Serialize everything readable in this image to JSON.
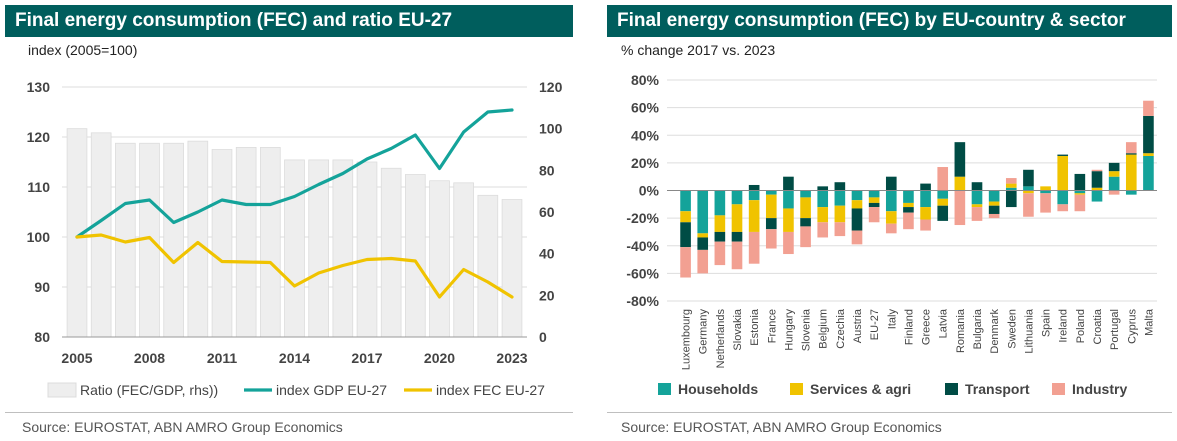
{
  "left_panel": {
    "title": "Final energy consumption (FEC) and ratio EU-27",
    "subtitle": "index (2005=100)",
    "source": "Source: EUROSTAT, ABN AMRO Group Economics"
  },
  "right_panel": {
    "title": "Final energy consumption (FEC) by EU-country & sector",
    "subtitle": "% change 2017 vs. 2023",
    "source": "Source: EUROSTAT, ABN AMRO Group Economics"
  },
  "chart_data": [
    {
      "type": "bar+line",
      "x": [
        2005,
        2006,
        2007,
        2008,
        2009,
        2010,
        2011,
        2012,
        2013,
        2014,
        2015,
        2016,
        2017,
        2018,
        2019,
        2020,
        2021,
        2022,
        2023
      ],
      "x_tick_labels": [
        "2005",
        "2008",
        "2011",
        "2014",
        "2017",
        "2020",
        "2023"
      ],
      "x_tick_values": [
        2005,
        2008,
        2011,
        2014,
        2017,
        2020,
        2023
      ],
      "y_left_ticks": [
        "80",
        "90",
        "100",
        "110",
        "120",
        "130"
      ],
      "y_left_lim": [
        80,
        130
      ],
      "y_right_ticks": [
        "0",
        "20",
        "40",
        "60",
        "80",
        "100",
        "120"
      ],
      "y_right_lim": [
        0,
        120
      ],
      "grid": true,
      "legend_position": "bottom",
      "series": [
        {
          "name": "Ratio (FEC/GDP, rhs))",
          "kind": "bar",
          "axis": "right",
          "color": "#eeeeee",
          "values": [
            100,
            98,
            93,
            93,
            93,
            94,
            90,
            91,
            91,
            85,
            85,
            85,
            84,
            81,
            78,
            75,
            74,
            68,
            66
          ]
        },
        {
          "name": "index GDP EU-27",
          "kind": "line",
          "axis": "left",
          "color": "#14a39a",
          "values": [
            100,
            103.3,
            106.7,
            107.4,
            102.9,
            105.0,
            107.4,
            106.5,
            106.5,
            108.1,
            110.5,
            112.7,
            115.6,
            117.7,
            120.4,
            113.7,
            121.0,
            125.0,
            125.4
          ]
        },
        {
          "name": "index FEC EU-27",
          "kind": "line",
          "axis": "left",
          "color": "#f0c300",
          "values": [
            100,
            100.4,
            99.0,
            99.9,
            94.9,
            98.9,
            95.1,
            95.0,
            94.9,
            90.2,
            92.8,
            94.3,
            95.5,
            95.7,
            95.2,
            88.0,
            93.5,
            91.0,
            88.0
          ]
        }
      ]
    },
    {
      "type": "bar",
      "stacked": true,
      "categories": [
        "Luxembourg",
        "Germany",
        "Netherlands",
        "Slovakia",
        "Estonia",
        "France",
        "Hungary",
        "Slovenia",
        "Belgium",
        "Czechia",
        "Austria",
        "EU-27",
        "Italy",
        "Finland",
        "Greece",
        "Latvia",
        "Romania",
        "Bulgaria",
        "Denmark",
        "Sweden",
        "Lithuania",
        "Spain",
        "Ireland",
        "Poland",
        "Croatia",
        "Portugal",
        "Cyprus",
        "Malta"
      ],
      "ylim": [
        -80,
        80
      ],
      "y_ticks": [
        "-80%",
        "-60%",
        "-40%",
        "-20%",
        "0%",
        "20%",
        "40%",
        "60%",
        "80%"
      ],
      "y_tick_values": [
        -80,
        -60,
        -40,
        -20,
        0,
        20,
        40,
        60,
        80
      ],
      "grid": true,
      "legend_position": "bottom",
      "series": [
        {
          "name": "Households",
          "color": "#14a39a",
          "values": [
            -15,
            -31,
            -18,
            -10,
            -7,
            -3,
            -13,
            -5,
            -12,
            -11,
            -7,
            -5,
            -15,
            -9,
            -12,
            -6,
            0,
            -10,
            -8,
            2,
            3,
            -2,
            -10,
            -2,
            -8,
            10,
            -3,
            25
          ]
        },
        {
          "name": "Services & agri",
          "color": "#f0c300",
          "values": [
            -8,
            -3,
            -12,
            -20,
            -23,
            -17,
            -17,
            -15,
            -11,
            -12,
            -6,
            -4,
            -9,
            -3,
            -9,
            -5,
            10,
            -2,
            -3,
            3,
            -2,
            3,
            25,
            -1,
            2,
            4,
            26,
            2
          ]
        },
        {
          "name": "Transport",
          "color": "#004c45",
          "values": [
            -18,
            -9,
            -7,
            -7,
            4,
            -8,
            10,
            -6,
            3,
            6,
            -16,
            -3,
            10,
            -4,
            5,
            -11,
            25,
            6,
            -6,
            -12,
            12,
            0,
            1,
            12,
            12,
            6,
            1,
            27
          ]
        },
        {
          "name": "Industry",
          "color": "#f2a092",
          "values": [
            -22,
            -17,
            -17,
            -20,
            -23,
            -14,
            -16,
            -15,
            -11,
            -10,
            -10,
            -11,
            -7,
            -12,
            -8,
            17,
            -25,
            -10,
            -3,
            4,
            -17,
            -14,
            -5,
            -12,
            1,
            -3,
            8,
            11
          ]
        }
      ]
    }
  ]
}
